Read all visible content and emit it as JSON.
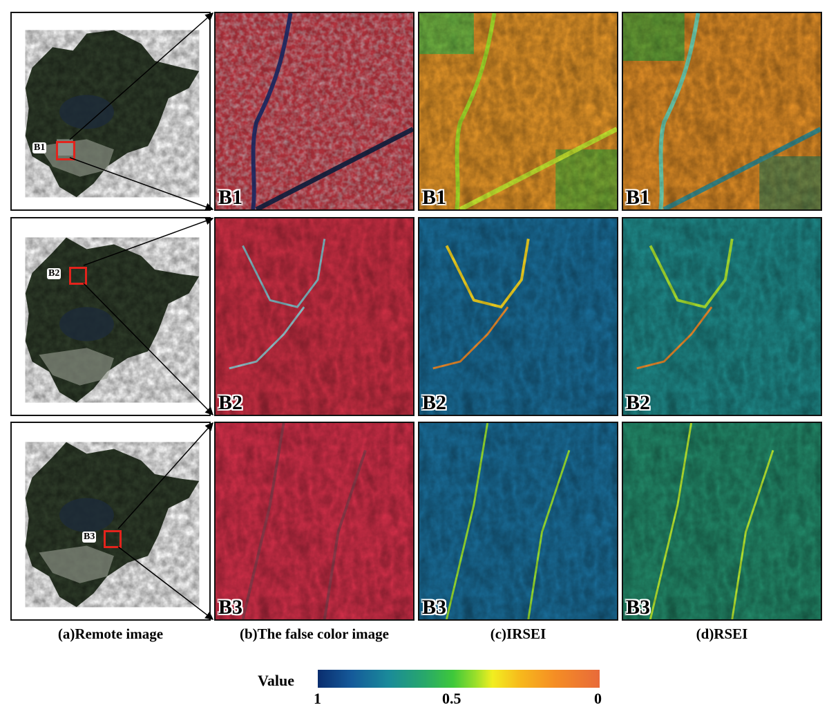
{
  "columns": [
    {
      "caption": "(a)Remote image"
    },
    {
      "caption": "(b)The false color image"
    },
    {
      "caption": "(c)IRSEI"
    },
    {
      "caption": "(d)RSEI"
    }
  ],
  "rows": [
    {
      "label": "B1",
      "inset_label": "B1"
    },
    {
      "label": "B2",
      "inset_label": "B2"
    },
    {
      "label": "B3",
      "inset_label": "B3"
    }
  ],
  "legend": {
    "title": "Value",
    "ticks": [
      "1",
      "0.5",
      "0"
    ]
  },
  "colors": {
    "highlight_box": "#e3231c",
    "scale_high": "#0a2d6e",
    "scale_mid": "#3ec83a",
    "scale_low": "#e86a3a"
  }
}
